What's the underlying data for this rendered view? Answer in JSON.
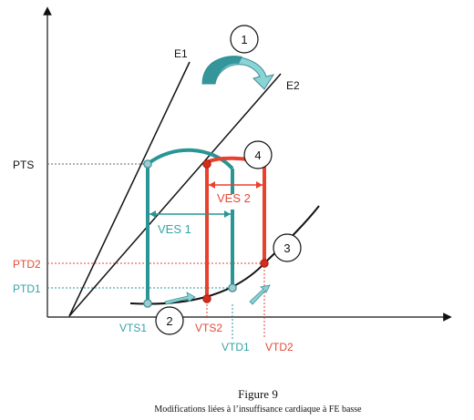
{
  "labels": {
    "e1": "E1",
    "e2": "E2",
    "pts": "PTS",
    "ptd2": "PTD2",
    "ptd1": "PTD1",
    "ves1": "VES 1",
    "ves2": "VES 2",
    "vts1": "VTS1",
    "vts2": "VTS2",
    "vtd1": "VTD1",
    "vtd2": "VTD2"
  },
  "markers": [
    "1",
    "2",
    "3",
    "4"
  ],
  "caption": {
    "title": "Figure 9",
    "subtitle": "Modifications liées à l’insuffisance cardiaque à FE basse"
  },
  "colors": {
    "teal": "#2a9594",
    "red": "#e8412e",
    "label_teal": "#35a3a8",
    "label_red": "#e24a35",
    "arrow_fill": "#8ad3d6",
    "axis": "#111111"
  }
}
